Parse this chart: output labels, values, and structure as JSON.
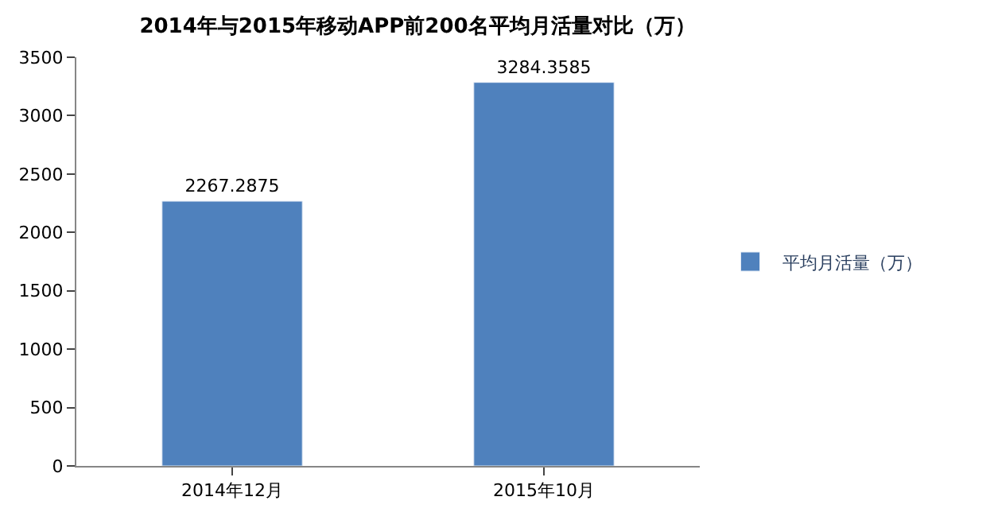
{
  "chart_data": {
    "type": "bar",
    "title": "2014年与2015年移动APP前200名平均月活量对比（万）",
    "categories": [
      "2014年12月",
      "2015年10月"
    ],
    "series": [
      {
        "name": "平均月活量（万）",
        "color": "#4f81bd",
        "values": [
          2267.2875,
          3284.3585
        ]
      }
    ],
    "ylim": [
      0,
      3500
    ],
    "yticks": [
      0,
      500,
      1000,
      1500,
      2000,
      2500,
      3000,
      3500
    ],
    "data_labels": true,
    "legend": "right"
  }
}
